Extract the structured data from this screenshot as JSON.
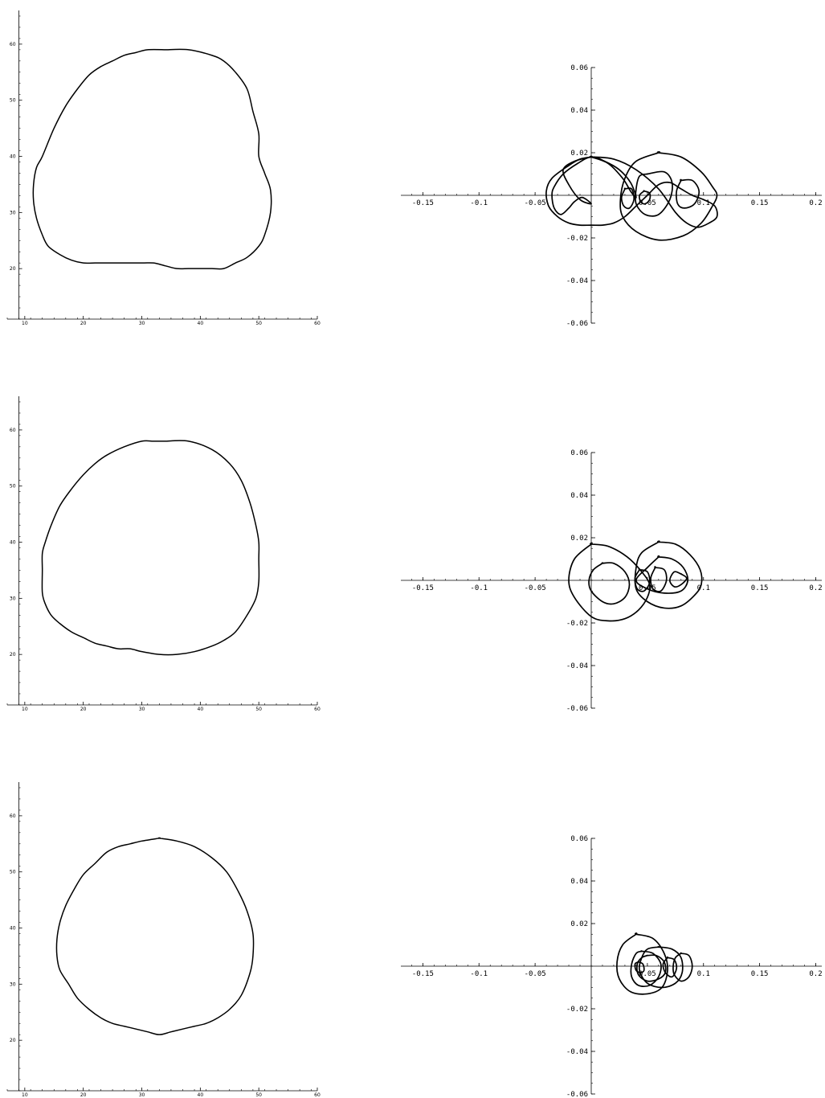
{
  "chart_data": [
    {
      "type": "line",
      "panel": "row1-left",
      "xlim": [
        7,
        60
      ],
      "ylim": [
        11,
        66
      ],
      "x_ticks": [
        10,
        20,
        30,
        40,
        50,
        60
      ],
      "y_ticks": [
        20,
        30,
        40,
        50,
        60
      ],
      "x_tick_labels": [
        "10",
        "20",
        "30",
        "40",
        "50",
        "60"
      ],
      "y_tick_labels": [
        "20",
        "30",
        "40",
        "50",
        "60"
      ],
      "axis_origin": [
        9,
        11
      ],
      "grid": false,
      "series": [
        {
          "closed": true,
          "x": [
            34,
            38,
            42,
            44,
            46,
            48,
            49,
            50,
            50,
            51,
            52,
            52,
            51,
            50,
            48,
            46,
            44,
            42,
            40,
            38,
            36,
            34,
            32,
            30,
            26,
            22,
            20,
            18,
            16,
            14,
            13,
            12,
            11.5,
            11.5,
            12,
            13,
            15,
            17,
            19,
            21,
            23,
            25,
            27,
            29,
            31,
            34
          ],
          "y": [
            59,
            59,
            58,
            57,
            55,
            52,
            48,
            44,
            40,
            37,
            34,
            30,
            26,
            24,
            22,
            21,
            20,
            20,
            20,
            20,
            20,
            20.5,
            21,
            21,
            21,
            21,
            21,
            21.5,
            22.5,
            24,
            26,
            29,
            32,
            35,
            38,
            40,
            45,
            49,
            52,
            54.5,
            56,
            57,
            58,
            58.5,
            59,
            59
          ]
        }
      ]
    },
    {
      "type": "line",
      "panel": "row1-right",
      "xlim": [
        -0.17,
        0.2
      ],
      "ylim": [
        -0.06,
        0.06
      ],
      "x_ticks": [
        -0.15,
        -0.1,
        -0.05,
        0.05,
        0.1,
        0.15,
        0.2
      ],
      "y_ticks": [
        0.06,
        0.04,
        0.02,
        -0.02,
        -0.04,
        -0.06
      ],
      "x_tick_labels": [
        "-0.15",
        "-0.1",
        "-0.05",
        "0.05",
        "0.1",
        "0.15",
        "0.2"
      ],
      "y_tick_labels": [
        "0.06",
        "0.04",
        "0.02",
        "-0.02",
        "-0.04",
        "-0.06"
      ],
      "grid": false,
      "series": [
        {
          "closed": true,
          "x": [
            0,
            0.02,
            0.04,
            0.06,
            0.075,
            0.085,
            0.095,
            0.105,
            0.112,
            0.11,
            0.1,
            0.09,
            0.08,
            0.07,
            0.06,
            0.05,
            0.04,
            0.03,
            0.02,
            0.01,
            0,
            -0.01,
            -0.02,
            -0.03,
            -0.038,
            -0.04,
            -0.035,
            -0.02,
            -0.01,
            0
          ],
          "y": [
            0.018,
            0.017,
            0.012,
            0.003,
            -0.008,
            -0.013,
            -0.015,
            -0.013,
            -0.01,
            -0.005,
            -0.002,
            0,
            0.003,
            0.006,
            0.005,
            0,
            -0.005,
            -0.01,
            -0.013,
            -0.014,
            -0.014,
            -0.014,
            -0.013,
            -0.01,
            -0.005,
            0.002,
            0.008,
            0.014,
            0.017,
            0.018
          ]
        },
        {
          "closed": true,
          "x": [
            0.06,
            0.08,
            0.098,
            0.108,
            0.112,
            0.108,
            0.098,
            0.082,
            0.06,
            0.04,
            0.028,
            0.026,
            0.03,
            0.04,
            0.06
          ],
          "y": [
            0.02,
            0.018,
            0.011,
            0.004,
            0,
            -0.005,
            -0.013,
            -0.019,
            -0.021,
            -0.017,
            -0.01,
            -0.002,
            0.008,
            0.016,
            0.02
          ]
        },
        {
          "closed": true,
          "x": [
            0,
            0.015,
            0.028,
            0.035,
            0.04,
            0.035,
            0.025,
            0.012,
            0,
            -0.012,
            -0.025,
            -0.033,
            -0.035,
            -0.033,
            -0.027,
            -0.02,
            -0.015,
            -0.008,
            0,
            -0.01,
            -0.02,
            -0.025,
            -0.015,
            0
          ],
          "y": [
            0.018,
            0.015,
            0.008,
            0.002,
            -0.001,
            0.006,
            0.012,
            0.016,
            0.018,
            0.015,
            0.01,
            0.004,
            0,
            -0.006,
            -0.009,
            -0.006,
            -0.003,
            -0.001,
            -0.004,
            -0.002,
            0.005,
            0.012,
            0.016,
            0.018
          ]
        },
        {
          "closed": true,
          "x": [
            0.05,
            0.065,
            0.072,
            0.07,
            0.06,
            0.048,
            0.04,
            0.04,
            0.043,
            0.05
          ],
          "y": [
            0.01,
            0.011,
            0.006,
            -0.002,
            -0.009,
            -0.009,
            -0.004,
            0.003,
            0.009,
            0.01
          ]
        },
        {
          "closed": true,
          "x": [
            0.03,
            0.036,
            0.038,
            0.034,
            0.029,
            0.027,
            0.03
          ],
          "y": [
            0.003,
            0.003,
            -0.002,
            -0.006,
            -0.005,
            -0.001,
            0.003
          ]
        },
        {
          "closed": true,
          "x": [
            0.047,
            0.052,
            0.052,
            0.048,
            0.044,
            0.043,
            0.047
          ],
          "y": [
            0.002,
            0.001,
            -0.002,
            -0.004,
            -0.003,
            0,
            0.002
          ]
        },
        {
          "closed": true,
          "x": [
            0.08,
            0.09,
            0.096,
            0.092,
            0.083,
            0.077,
            0.076,
            0.08
          ],
          "y": [
            0.007,
            0.007,
            0.002,
            -0.004,
            -0.006,
            -0.004,
            0.002,
            0.007
          ]
        }
      ]
    },
    {
      "type": "line",
      "panel": "row2-left",
      "xlim": [
        7,
        60
      ],
      "ylim": [
        11,
        66
      ],
      "x_ticks": [
        10,
        20,
        30,
        40,
        50,
        60
      ],
      "y_ticks": [
        20,
        30,
        40,
        50,
        60
      ],
      "x_tick_labels": [
        "10",
        "20",
        "30",
        "40",
        "50",
        "60"
      ],
      "y_tick_labels": [
        "20",
        "30",
        "40",
        "50",
        "60"
      ],
      "axis_origin": [
        9,
        11
      ],
      "grid": false,
      "series": [
        {
          "closed": true,
          "x": [
            34,
            38,
            42,
            45,
            47,
            48.5,
            49.5,
            50,
            50,
            50,
            49.5,
            48,
            46,
            44,
            42,
            39,
            36,
            33,
            30,
            28,
            26,
            24,
            22,
            20,
            18,
            16,
            14.5,
            13.5,
            13,
            13,
            13,
            13.5,
            14.5,
            16,
            18,
            20,
            22,
            24,
            27,
            30,
            32,
            34
          ],
          "y": [
            58,
            58,
            56.5,
            54,
            51,
            47,
            43,
            40,
            37,
            33,
            30,
            27,
            24,
            22.5,
            21.5,
            20.5,
            20,
            20,
            20.5,
            21,
            21,
            21.5,
            22,
            23,
            24,
            25.5,
            27,
            29,
            31,
            35,
            38,
            40,
            43,
            46.5,
            49.5,
            52,
            54,
            55.5,
            57,
            58,
            58,
            58
          ]
        }
      ]
    },
    {
      "type": "line",
      "panel": "row2-right",
      "xlim": [
        -0.17,
        0.2
      ],
      "ylim": [
        -0.06,
        0.06
      ],
      "x_ticks": [
        -0.15,
        -0.1,
        -0.05,
        0.05,
        0.1,
        0.15,
        0.2
      ],
      "y_ticks": [
        0.06,
        0.04,
        0.02,
        -0.02,
        -0.04,
        -0.06
      ],
      "x_tick_labels": [
        "-0.15",
        "-0.1",
        "-0.05",
        "0.05",
        "0.1",
        "0.15",
        "0.2"
      ],
      "y_tick_labels": [
        "0.06",
        "0.04",
        "0.02",
        "-0.02",
        "-0.04",
        "-0.06"
      ],
      "grid": false,
      "series": [
        {
          "closed": true,
          "x": [
            0,
            0.015,
            0.032,
            0.045,
            0.052,
            0.05,
            0.042,
            0.03,
            0.015,
            0,
            -0.015,
            -0.02,
            -0.015,
            0
          ],
          "y": [
            0.017,
            0.016,
            0.011,
            0.004,
            -0.002,
            -0.008,
            -0.014,
            -0.018,
            -0.019,
            -0.017,
            -0.008,
            0,
            0.01,
            0.017
          ]
        },
        {
          "closed": true,
          "x": [
            0.06,
            0.075,
            0.088,
            0.097,
            0.098,
            0.092,
            0.08,
            0.065,
            0.05,
            0.04,
            0.04,
            0.045,
            0.06
          ],
          "y": [
            0.018,
            0.017,
            0.012,
            0.005,
            -0.002,
            -0.007,
            -0.012,
            -0.013,
            -0.01,
            -0.004,
            0.006,
            0.013,
            0.018
          ]
        },
        {
          "closed": true,
          "x": [
            0.01,
            0.02,
            0.03,
            0.034,
            0.03,
            0.02,
            0.01,
            0,
            -0.002,
            0.002,
            0.01
          ],
          "y": [
            0.008,
            0.008,
            0.004,
            -0.002,
            -0.008,
            -0.011,
            -0.01,
            -0.005,
            0,
            0.005,
            0.008
          ]
        },
        {
          "closed": true,
          "x": [
            0.06,
            0.072,
            0.082,
            0.086,
            0.08,
            0.065,
            0.05,
            0.04,
            0.05,
            0.06
          ],
          "y": [
            0.011,
            0.01,
            0.006,
            0,
            -0.005,
            -0.006,
            -0.004,
            0,
            0.006,
            0.011
          ]
        },
        {
          "closed": true,
          "x": [
            0.043,
            0.05,
            0.052,
            0.047,
            0.041,
            0.039,
            0.043
          ],
          "y": [
            0.005,
            0.004,
            -0.001,
            -0.005,
            -0.004,
            0.001,
            0.005
          ]
        },
        {
          "closed": true,
          "x": [
            0.057,
            0.065,
            0.067,
            0.062,
            0.055,
            0.053,
            0.057
          ],
          "y": [
            0.006,
            0.005,
            0,
            -0.005,
            -0.004,
            0.001,
            0.006
          ]
        },
        {
          "closed": true,
          "x": [
            0.08,
            0.074,
            0.07,
            0.074,
            0.08,
            0.085,
            0.08
          ],
          "y": [
            0.003,
            0.004,
            0,
            -0.003,
            -0.002,
            0.001,
            0.003
          ]
        }
      ]
    },
    {
      "type": "line",
      "panel": "row3-left",
      "xlim": [
        7,
        60
      ],
      "ylim": [
        11,
        66
      ],
      "x_ticks": [
        10,
        20,
        30,
        40,
        50,
        60
      ],
      "y_ticks": [
        20,
        30,
        40,
        50,
        60
      ],
      "x_tick_labels": [
        "10",
        "20",
        "30",
        "40",
        "50",
        "60"
      ],
      "y_tick_labels": [
        "20",
        "30",
        "40",
        "50",
        "60"
      ],
      "axis_origin": [
        9,
        11
      ],
      "grid": false,
      "series": [
        {
          "closed": true,
          "x": [
            33,
            36,
            39,
            42,
            44.5,
            46.5,
            48,
            49,
            49,
            48.5,
            47,
            45,
            43,
            41,
            39,
            37,
            35,
            33,
            31,
            29,
            27,
            25,
            23,
            21,
            19,
            17.5,
            16,
            15.5,
            15.5,
            16,
            17,
            18.5,
            20,
            22,
            24,
            26,
            28,
            30,
            33
          ],
          "y": [
            56,
            55.5,
            54.5,
            52.5,
            50,
            46.5,
            43,
            39,
            35,
            32,
            28,
            25.5,
            24,
            23,
            22.5,
            22,
            21.5,
            21,
            21.5,
            22,
            22.5,
            23,
            24,
            25.5,
            27.5,
            30,
            32.5,
            35,
            38,
            41,
            44,
            47,
            49.5,
            51.5,
            53.5,
            54.5,
            55,
            55.5,
            56
          ]
        }
      ]
    },
    {
      "type": "line",
      "panel": "row3-right",
      "xlim": [
        -0.17,
        0.2
      ],
      "ylim": [
        -0.06,
        0.06
      ],
      "x_ticks": [
        -0.15,
        -0.1,
        -0.05,
        0.05,
        0.1,
        0.15,
        0.2
      ],
      "y_ticks": [
        0.06,
        0.04,
        0.02,
        -0.02,
        -0.04,
        -0.06
      ],
      "x_tick_labels": [
        "-0.15",
        "-0.1",
        "-0.05",
        "0.05",
        "0.1",
        "0.15",
        "0.2"
      ],
      "y_tick_labels": [
        "0.06",
        "0.04",
        "0.02",
        "-0.02",
        "-0.04",
        "-0.06"
      ],
      "grid": false,
      "series": [
        {
          "closed": true,
          "x": [
            0.04,
            0.055,
            0.065,
            0.068,
            0.063,
            0.05,
            0.035,
            0.025,
            0.023,
            0.028,
            0.04
          ],
          "y": [
            0.015,
            0.013,
            0.006,
            -0.002,
            -0.01,
            -0.013,
            -0.012,
            -0.006,
            0.002,
            0.01,
            0.015
          ]
        },
        {
          "closed": true,
          "x": [
            0.06,
            0.072,
            0.08,
            0.081,
            0.075,
            0.063,
            0.05,
            0.043,
            0.045,
            0.05,
            0.06
          ],
          "y": [
            0.009,
            0.008,
            0.004,
            -0.003,
            -0.008,
            -0.01,
            -0.008,
            -0.002,
            0.004,
            0.008,
            0.009
          ]
        },
        {
          "closed": true,
          "x": [
            0.045,
            0.055,
            0.062,
            0.06,
            0.052,
            0.042,
            0.036,
            0.036,
            0.04,
            0.045
          ],
          "y": [
            0.007,
            0.006,
            0.001,
            -0.005,
            -0.009,
            -0.009,
            -0.005,
            0.001,
            0.006,
            0.007
          ]
        },
        {
          "closed": true,
          "x": [
            0.08,
            0.087,
            0.09,
            0.087,
            0.08,
            0.074,
            0.073,
            0.075,
            0.08
          ],
          "y": [
            0.006,
            0.005,
            0,
            -0.005,
            -0.007,
            -0.004,
            0,
            0.004,
            0.006
          ]
        },
        {
          "closed": true,
          "x": [
            0.05,
            0.058,
            0.065,
            0.066,
            0.06,
            0.05,
            0.042,
            0.041,
            0.045,
            0.05
          ],
          "y": [
            0.005,
            0.005,
            0.002,
            -0.003,
            -0.006,
            -0.007,
            -0.004,
            0.001,
            0.004,
            0.005
          ]
        },
        {
          "closed": true,
          "x": [
            0.068,
            0.074,
            0.076,
            0.072,
            0.066,
            0.064,
            0.068
          ],
          "y": [
            0.004,
            0.003,
            -0.001,
            -0.005,
            -0.003,
            0.001,
            0.004
          ]
        },
        {
          "closed": true,
          "x": [
            0.042,
            0.046,
            0.047,
            0.044,
            0.04,
            0.039,
            0.042
          ],
          "y": [
            0.002,
            0.001,
            -0.002,
            -0.003,
            -0.002,
            0.001,
            0.002
          ]
        }
      ]
    }
  ]
}
